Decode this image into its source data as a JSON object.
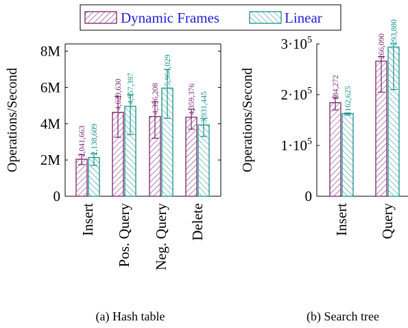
{
  "legend": {
    "items": [
      {
        "label": "Dynamic Frames",
        "color": "#7b1f6e",
        "text_color": "#1f1fd1"
      },
      {
        "label": "Linear",
        "color": "#138f8a",
        "text_color": "#1f1fd1"
      }
    ]
  },
  "chart_data": [
    {
      "type": "bar",
      "caption": "(a) Hash table",
      "ylabel": "Operations/Second",
      "ylim": [
        0,
        8400000
      ],
      "yticks": [
        0,
        2000000,
        4000000,
        6000000,
        8000000
      ],
      "ytick_labels": [
        "0",
        "2M",
        "4M",
        "6M",
        "8M"
      ],
      "categories": [
        "Insert",
        "Pos. Query",
        "Neg. Query",
        "Delete"
      ],
      "series": [
        {
          "name": "Dynamic Frames",
          "color": "#7b1f6e",
          "values": [
            2041663,
            4629630,
            4396208,
            4359376
          ],
          "value_labels": [
            "2,041,663",
            "4,629,630",
            "4,396,208",
            "4,359,376"
          ],
          "err_low": [
            1750000,
            3250000,
            3200000,
            3700000
          ],
          "err_high": [
            2300000,
            5500000,
            5200000,
            4800000
          ]
        },
        {
          "name": "Linear",
          "color": "#138f8a",
          "values": [
            2138609,
            4957397,
            5964029,
            3931445
          ],
          "value_labels": [
            "2,138,609",
            "4,957,397",
            "5,964,029",
            "3,931,445"
          ],
          "err_low": [
            1700000,
            3400000,
            4300000,
            3300000
          ],
          "err_high": [
            2350000,
            5600000,
            7000000,
            4300000
          ]
        }
      ]
    },
    {
      "type": "bar",
      "caption": "(b) Search tree",
      "ylabel": "Operations/Second",
      "ylim": [
        0,
        300000
      ],
      "yticks": [
        0,
        100000,
        200000,
        300000
      ],
      "ytick_labels": [
        "0",
        "1·10^5",
        "2·10^5",
        "3·10^5"
      ],
      "categories": [
        "Insert",
        "Query"
      ],
      "series": [
        {
          "name": "Dynamic Frames",
          "color": "#7b1f6e",
          "values": [
            184272,
            266090
          ],
          "value_labels": [
            "184,272",
            "266,090"
          ],
          "err_low": [
            170000,
            205000
          ],
          "err_high": [
            195000,
            275000
          ]
        },
        {
          "name": "Linear",
          "color": "#138f8a",
          "values": [
            162625,
            293880
          ],
          "value_labels": [
            "162,625",
            "293,880"
          ],
          "err_low": [
            160000,
            210000
          ],
          "err_high": [
            164000,
            300000
          ]
        }
      ]
    }
  ]
}
